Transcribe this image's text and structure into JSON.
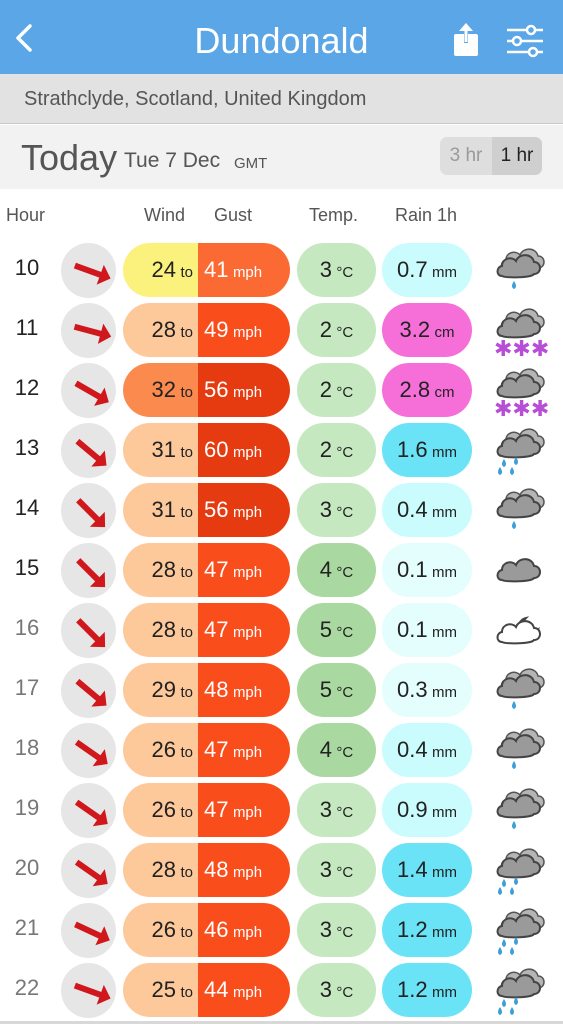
{
  "header": {
    "title": "Dundonald"
  },
  "location": "Strathclyde, Scotland, United Kingdom",
  "date_bar": {
    "today": "Today",
    "date": "Tue 7 Dec",
    "timezone": "GMT",
    "options": [
      "3 hr",
      "1 hr"
    ],
    "selected": "1 hr"
  },
  "columns": {
    "hour": "Hour",
    "wind": "Wind",
    "gust": "Gust",
    "temp": "Temp.",
    "rain": "Rain 1h"
  },
  "units": {
    "to": "to",
    "speed": "mph",
    "temp": "°C"
  },
  "colors": {
    "header": "#5ba6e6",
    "arrow": "#d0171c",
    "wind_yellow": "#fbf27e",
    "wind_peach": "#fdc89a",
    "wind_orange": "#fb8a4e",
    "gust_orange": "#fb6a33",
    "gust_red": "#fa4d1c",
    "gust_darkred": "#e63b10",
    "temp_light": "#c5e8c0",
    "temp_mid": "#a9d8a0",
    "rain_pale": "#e4fdfd",
    "rain_light": "#cafbfd",
    "rain_cyan": "#6ae3f6",
    "rain_pink": "#f66fd8"
  },
  "rows": [
    {
      "hour": "10",
      "dim": false,
      "dir_deg": 110,
      "wind": "24",
      "wind_color": "#fbf27e",
      "gust": "41",
      "gust_color": "#fb6a33",
      "temp": "3",
      "temp_color": "#c5e8c0",
      "rain": "0.7",
      "rain_unit": "mm",
      "rain_color": "#cafbfd",
      "icon": "rain-cloud-icon"
    },
    {
      "hour": "11",
      "dim": false,
      "dir_deg": 105,
      "wind": "28",
      "wind_color": "#fdc89a",
      "gust": "49",
      "gust_color": "#fa4d1c",
      "temp": "2",
      "temp_color": "#c5e8c0",
      "rain": "3.2",
      "rain_unit": "cm",
      "rain_color": "#f66fd8",
      "icon": "snow-cloud-icon"
    },
    {
      "hour": "12",
      "dim": false,
      "dir_deg": 120,
      "wind": "32",
      "wind_color": "#fb8a4e",
      "gust": "56",
      "gust_color": "#e63b10",
      "temp": "2",
      "temp_color": "#c5e8c0",
      "rain": "2.8",
      "rain_unit": "cm",
      "rain_color": "#f66fd8",
      "icon": "snow-cloud-icon"
    },
    {
      "hour": "13",
      "dim": false,
      "dir_deg": 130,
      "wind": "31",
      "wind_color": "#fdc89a",
      "gust": "60",
      "gust_color": "#e63b10",
      "temp": "2",
      "temp_color": "#c5e8c0",
      "rain": "1.6",
      "rain_unit": "mm",
      "rain_color": "#6ae3f6",
      "icon": "heavy-rain-cloud-icon"
    },
    {
      "hour": "14",
      "dim": false,
      "dir_deg": 135,
      "wind": "31",
      "wind_color": "#fdc89a",
      "gust": "56",
      "gust_color": "#e63b10",
      "temp": "3",
      "temp_color": "#c5e8c0",
      "rain": "0.4",
      "rain_unit": "mm",
      "rain_color": "#cafbfd",
      "icon": "rain-cloud-icon"
    },
    {
      "hour": "15",
      "dim": false,
      "dir_deg": 135,
      "wind": "28",
      "wind_color": "#fdc89a",
      "gust": "47",
      "gust_color": "#fa4d1c",
      "temp": "4",
      "temp_color": "#a9d8a0",
      "rain": "0.1",
      "rain_unit": "mm",
      "rain_color": "#e4fdfd",
      "icon": "cloud-icon"
    },
    {
      "hour": "16",
      "dim": true,
      "dir_deg": 135,
      "wind": "28",
      "wind_color": "#fdc89a",
      "gust": "47",
      "gust_color": "#fa4d1c",
      "temp": "5",
      "temp_color": "#a9d8a0",
      "rain": "0.1",
      "rain_unit": "mm",
      "rain_color": "#e4fdfd",
      "icon": "cloud-moon-icon"
    },
    {
      "hour": "17",
      "dim": true,
      "dir_deg": 130,
      "wind": "29",
      "wind_color": "#fdc89a",
      "gust": "48",
      "gust_color": "#fa4d1c",
      "temp": "5",
      "temp_color": "#a9d8a0",
      "rain": "0.3",
      "rain_unit": "mm",
      "rain_color": "#e4fdfd",
      "icon": "rain-cloud-icon"
    },
    {
      "hour": "18",
      "dim": true,
      "dir_deg": 125,
      "wind": "26",
      "wind_color": "#fdc89a",
      "gust": "47",
      "gust_color": "#fa4d1c",
      "temp": "4",
      "temp_color": "#a9d8a0",
      "rain": "0.4",
      "rain_unit": "mm",
      "rain_color": "#cafbfd",
      "icon": "rain-cloud-icon"
    },
    {
      "hour": "19",
      "dim": true,
      "dir_deg": 125,
      "wind": "26",
      "wind_color": "#fdc89a",
      "gust": "47",
      "gust_color": "#fa4d1c",
      "temp": "3",
      "temp_color": "#c5e8c0",
      "rain": "0.9",
      "rain_unit": "mm",
      "rain_color": "#cafbfd",
      "icon": "rain-cloud-icon"
    },
    {
      "hour": "20",
      "dim": true,
      "dir_deg": 125,
      "wind": "28",
      "wind_color": "#fdc89a",
      "gust": "48",
      "gust_color": "#fa4d1c",
      "temp": "3",
      "temp_color": "#c5e8c0",
      "rain": "1.4",
      "rain_unit": "mm",
      "rain_color": "#6ae3f6",
      "icon": "heavy-rain-cloud-icon"
    },
    {
      "hour": "21",
      "dim": true,
      "dir_deg": 115,
      "wind": "26",
      "wind_color": "#fdc89a",
      "gust": "46",
      "gust_color": "#fa4d1c",
      "temp": "3",
      "temp_color": "#c5e8c0",
      "rain": "1.2",
      "rain_unit": "mm",
      "rain_color": "#6ae3f6",
      "icon": "heavy-rain-cloud-icon"
    },
    {
      "hour": "22",
      "dim": true,
      "dir_deg": 110,
      "wind": "25",
      "wind_color": "#fdc89a",
      "gust": "44",
      "gust_color": "#fa4d1c",
      "temp": "3",
      "temp_color": "#c5e8c0",
      "rain": "1.2",
      "rain_unit": "mm",
      "rain_color": "#6ae3f6",
      "icon": "heavy-rain-cloud-icon"
    }
  ]
}
